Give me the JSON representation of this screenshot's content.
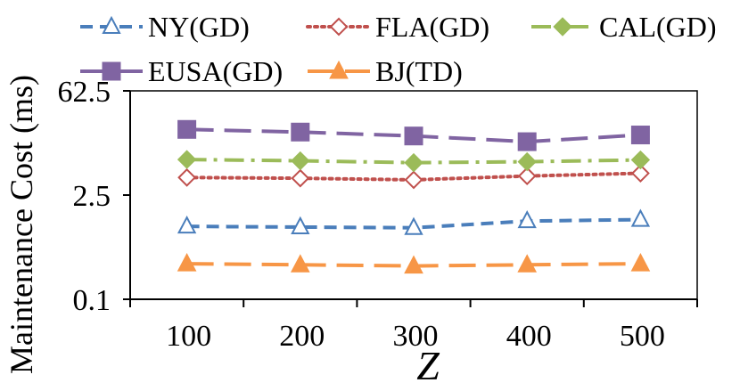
{
  "chart_data": {
    "type": "line",
    "title": "",
    "xlabel": "Z",
    "ylabel": "Maintenance Cost (ms)",
    "yscale": "log",
    "ylim": [
      0.1,
      62.5
    ],
    "yticks": [
      "0.1",
      "2.5",
      "62.5"
    ],
    "ytick_values": [
      0.1,
      2.5,
      62.5
    ],
    "categories": [
      "100",
      "200",
      "300",
      "400",
      "500"
    ],
    "legend_position": "top",
    "grid": false,
    "series": [
      {
        "name": "NY(GD)",
        "color": "#4A7EBB",
        "dash": "dashed",
        "marker": "open-triangle",
        "values": [
          0.95,
          0.93,
          0.91,
          1.12,
          1.17
        ]
      },
      {
        "name": "FLA(GD)",
        "color": "#C0504D",
        "dash": "dotted",
        "marker": "open-diamond",
        "values": [
          4.3,
          4.2,
          4.0,
          4.5,
          4.9
        ]
      },
      {
        "name": "CAL(GD)",
        "color": "#9BBB59",
        "dash": "dash-dot",
        "marker": "filled-diamond",
        "values": [
          7.5,
          7.2,
          6.8,
          7.0,
          7.4
        ]
      },
      {
        "name": "EUSA(GD)",
        "color": "#8064A2",
        "dash": "long-dash",
        "marker": "filled-square",
        "values": [
          19.0,
          17.5,
          15.5,
          13.0,
          16.0
        ]
      },
      {
        "name": "BJ(TD)",
        "color": "#F79646",
        "dash": "long-dash",
        "marker": "filled-triangle",
        "values": [
          0.3,
          0.29,
          0.28,
          0.29,
          0.3
        ]
      }
    ]
  }
}
